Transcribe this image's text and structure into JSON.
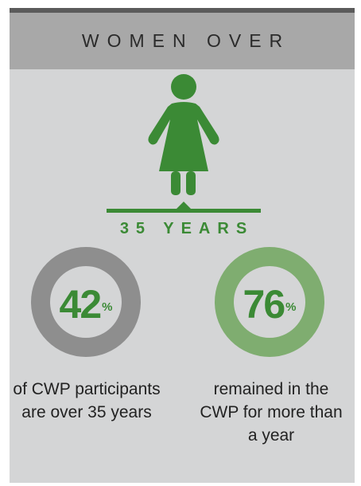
{
  "header": {
    "title": "WOMEN OVER"
  },
  "age": {
    "label": "35 YEARS"
  },
  "stats": [
    {
      "value": "42",
      "unit": "%",
      "fraction": 0.42,
      "description": "of CWP participants are over 35 years"
    },
    {
      "value": "76",
      "unit": "%",
      "fraction": 0.76,
      "description": "remained in the CWP for more than a year"
    }
  ],
  "colors": {
    "green": "#3b8a35",
    "light_green": "#7fad70",
    "gray_ring": "#8e8e8e",
    "background": "#d4d5d6",
    "header_bg": "#a8a8a8"
  },
  "icons": {
    "figure": "woman-icon"
  }
}
